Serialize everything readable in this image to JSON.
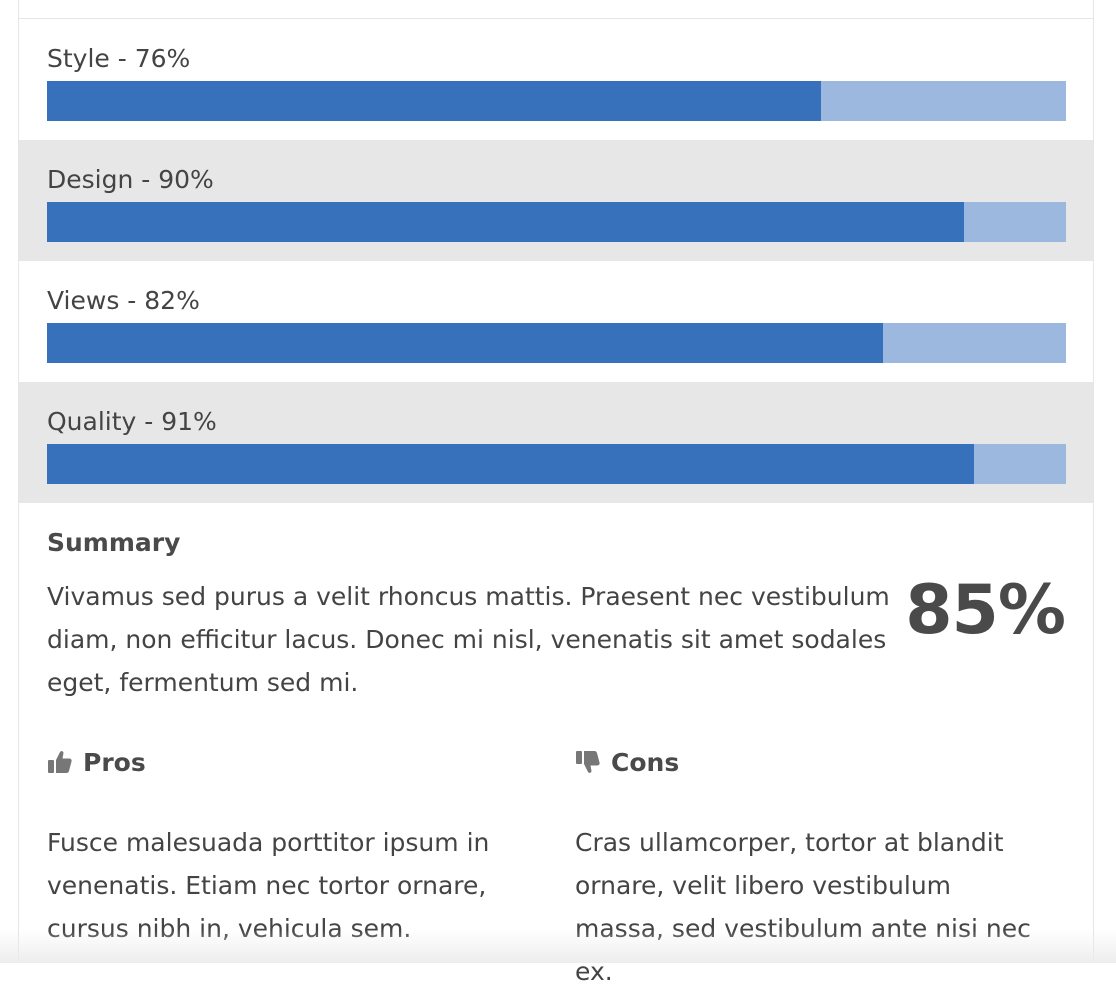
{
  "ratings": [
    {
      "label": "Style - 76%",
      "value": 76
    },
    {
      "label": "Design - 90%",
      "value": 90
    },
    {
      "label": "Views - 82%",
      "value": 82
    },
    {
      "label": "Quality - 91%",
      "value": 91
    }
  ],
  "summary": {
    "title": "Summary",
    "text": "Vivamus sed purus a velit rhoncus mattis. Praesent nec vestibulum diam, non efficitur lacus. Donec mi nisl, venenatis sit amet sodales eget, fermentum sed mi.",
    "score": "85%"
  },
  "pros": {
    "title": "Pros",
    "icon": "thumbs-up-icon",
    "text": "Fusce malesuada porttitor ipsum in venenatis. Etiam nec tortor ornare, cursus nibh in, vehicula sem."
  },
  "cons": {
    "title": "Cons",
    "icon": "thumbs-down-icon",
    "text": "Cras ullamcorper, tortor at blandit ornare, velit libero vestibulum massa, sed vestibulum ante nisi nec ex."
  },
  "colors": {
    "bar_fill": "#3871bb",
    "bar_track": "#9cb8de",
    "row_alt": "#e7e7e7"
  }
}
